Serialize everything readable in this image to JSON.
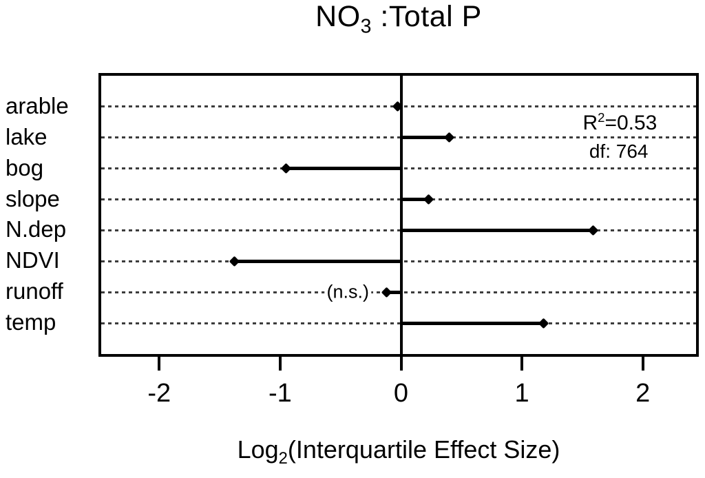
{
  "title": {
    "prefix": "NO",
    "sub": "3",
    "suffix": " :Total P"
  },
  "xaxis_label": {
    "prefix": "Log",
    "sub": "2",
    "suffix": "(Interquartile Effect Size)"
  },
  "annotation": {
    "r2_prefix": "R",
    "r2_sup": "2",
    "r2_suffix": "=0.53",
    "df": "df: 764"
  },
  "chart_data": {
    "type": "bar",
    "style": "horizontal-lollipop",
    "title": "NO3 :Total P",
    "xlabel": "Log2(Interquartile Effect Size)",
    "categories": [
      "arable",
      "lake",
      "bog",
      "slope",
      "N.dep",
      "NDVI",
      "runoff",
      "temp"
    ],
    "values": [
      -0.03,
      0.4,
      -0.95,
      0.23,
      1.59,
      -1.38,
      -0.12,
      1.18
    ],
    "xticks": [
      -2,
      -1,
      0,
      1,
      2
    ],
    "xlim": [
      -2.48,
      2.44
    ],
    "baseline": 0,
    "grid": "dotted horizontal line per category",
    "legend": "none",
    "ns": {
      "category": "runoff",
      "label": "(n.s.)",
      "x": -0.44
    },
    "annotations": [
      "R2=0.53",
      "df: 764",
      "(n.s.) on runoff"
    ],
    "colors": {
      "foreground": "#000000",
      "grid": "#3c3c3c",
      "background": "#ffffff"
    }
  }
}
